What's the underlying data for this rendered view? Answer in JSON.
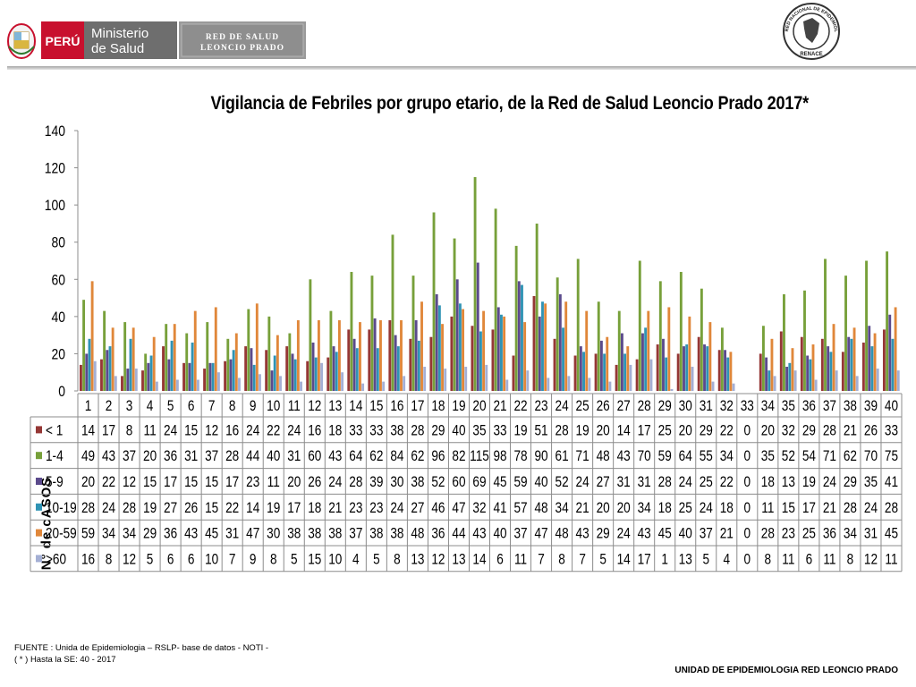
{
  "header": {
    "country": "PERÚ",
    "ministry": "Ministerio de Salud",
    "network_line1": "RED DE SALUD",
    "network_line2": "LEONCIO PRADO",
    "seal_text": "RED NACIONAL DE EPIDEMIOLOGIA",
    "seal_bottom": "RENACE"
  },
  "colors": {
    "peru_red": "#c8102e",
    "ministry_gray": "#7a7a7a",
    "series": [
      "#953735",
      "#77a03a",
      "#5b4a8c",
      "#2f93b4",
      "#e0873a",
      "#a4afd4"
    ]
  },
  "chart_data": {
    "type": "bar",
    "title": "Vigilancia  de Febriles por grupo etario, de la Red de Salud  Leoncio Prado 2017*",
    "xlabel": "",
    "ylabel": "N° de cASOS",
    "ylim": [
      0,
      140
    ],
    "yticks": [
      0,
      20,
      40,
      60,
      80,
      100,
      120,
      140
    ],
    "grid": false,
    "legend": "data-table",
    "categories": [
      "1",
      "2",
      "3",
      "4",
      "5",
      "6",
      "7",
      "8",
      "9",
      "10",
      "11",
      "12",
      "13",
      "14",
      "15",
      "16",
      "17",
      "18",
      "19",
      "20",
      "21",
      "22",
      "23",
      "24",
      "25",
      "26",
      "27",
      "28",
      "29",
      "30",
      "31",
      "32",
      "33",
      "34",
      "35",
      "36",
      "37",
      "38",
      "39",
      "40"
    ],
    "series": [
      {
        "name": "< 1",
        "values": [
          14,
          17,
          8,
          11,
          24,
          15,
          12,
          16,
          24,
          22,
          24,
          16,
          18,
          33,
          33,
          38,
          28,
          29,
          40,
          35,
          33,
          19,
          51,
          28,
          19,
          20,
          14,
          17,
          25,
          20,
          29,
          22,
          0,
          20,
          32,
          29,
          28,
          21,
          26,
          33
        ]
      },
      {
        "name": "1-4",
        "values": [
          49,
          43,
          37,
          20,
          36,
          31,
          37,
          28,
          44,
          40,
          31,
          60,
          43,
          64,
          62,
          84,
          62,
          96,
          82,
          115,
          98,
          78,
          90,
          61,
          71,
          48,
          43,
          70,
          59,
          64,
          55,
          34,
          0,
          35,
          52,
          54,
          71,
          62,
          70,
          75
        ]
      },
      {
        "name": "5-9",
        "values": [
          20,
          22,
          12,
          15,
          17,
          15,
          15,
          17,
          23,
          11,
          20,
          26,
          24,
          28,
          39,
          30,
          38,
          52,
          60,
          69,
          45,
          59,
          40,
          52,
          24,
          27,
          31,
          31,
          28,
          24,
          25,
          22,
          0,
          18,
          13,
          19,
          24,
          29,
          35,
          41
        ]
      },
      {
        "name": "10-19",
        "values": [
          28,
          24,
          28,
          19,
          27,
          26,
          15,
          22,
          14,
          19,
          17,
          18,
          21,
          23,
          23,
          24,
          27,
          46,
          47,
          32,
          41,
          57,
          48,
          34,
          21,
          20,
          20,
          34,
          18,
          25,
          24,
          18,
          0,
          11,
          15,
          17,
          21,
          28,
          24,
          28
        ]
      },
      {
        "name": "20-59",
        "values": [
          59,
          34,
          34,
          29,
          36,
          43,
          45,
          31,
          47,
          30,
          38,
          38,
          38,
          37,
          38,
          38,
          48,
          36,
          44,
          43,
          40,
          37,
          47,
          48,
          43,
          29,
          24,
          43,
          45,
          40,
          37,
          21,
          0,
          28,
          23,
          25,
          36,
          34,
          31,
          45
        ]
      },
      {
        "name": ">60",
        "values": [
          16,
          8,
          12,
          5,
          6,
          6,
          10,
          7,
          9,
          8,
          5,
          15,
          10,
          4,
          5,
          8,
          13,
          12,
          13,
          14,
          6,
          11,
          7,
          8,
          7,
          5,
          14,
          17,
          1,
          13,
          5,
          4,
          0,
          8,
          11,
          6,
          11,
          8,
          12,
          11
        ]
      }
    ]
  },
  "footer": {
    "source": "FUENTE :  Unida de Epidemiologia – RSLP- base de datos - NOTI  -",
    "note": "( * ) Hasta la SE: 40 - 2017",
    "unit": "UNIDAD  DE EPIDEMIOLOGIA RED LEONCIO PRADO"
  }
}
